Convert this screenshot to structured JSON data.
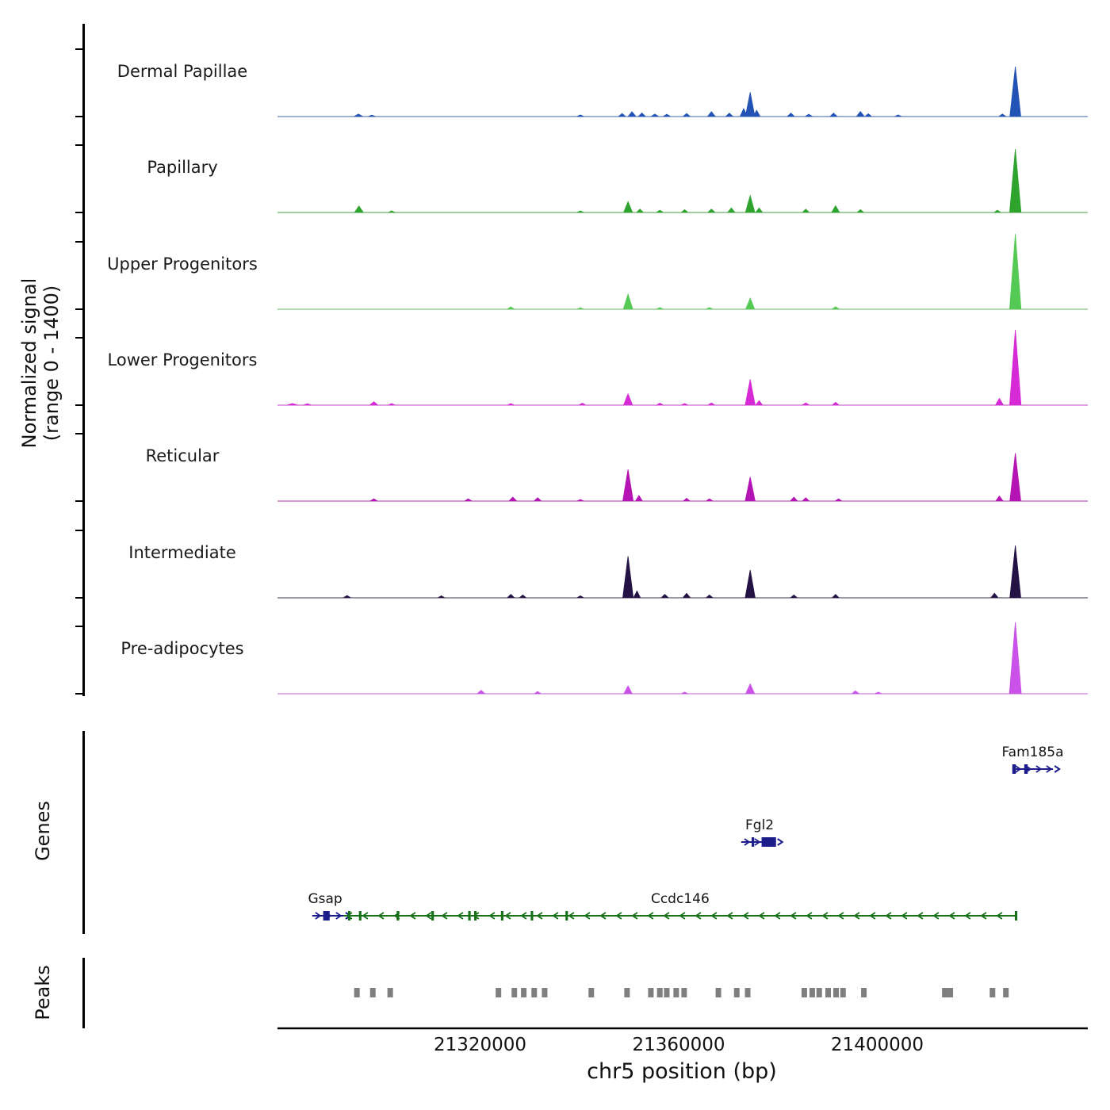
{
  "labels": {
    "ylabel": "Normalized signal\n(range 0 - 1400)",
    "genes_section": "Genes",
    "peaks_section": "Peaks",
    "xlabel": "chr5 position (bp)"
  },
  "chart_data": {
    "type": "area",
    "title": "",
    "xlabel": "chr5 position (bp)",
    "ylabel": "Normalized signal (range 0 - 1400)",
    "y_range_per_track": [
      0,
      1400
    ],
    "axis": {
      "x_min": 21279200,
      "x_max": 21442400,
      "ticks": [
        21320000,
        21360000,
        21400000
      ],
      "tick_labels": [
        "21320000",
        "21360000",
        "21400000"
      ]
    },
    "tracks": [
      {
        "name": "Dermal Papillae",
        "color": "#2353b5",
        "peaks": [
          [
            21295500,
            45,
            1800
          ],
          [
            21298200,
            25,
            1500
          ],
          [
            21340200,
            30,
            1500
          ],
          [
            21348600,
            55,
            1500
          ],
          [
            21350600,
            85,
            1600
          ],
          [
            21352600,
            65,
            1500
          ],
          [
            21355200,
            45,
            1500
          ],
          [
            21357600,
            40,
            1500
          ],
          [
            21361600,
            55,
            1500
          ],
          [
            21366600,
            85,
            1600
          ],
          [
            21370200,
            60,
            1500
          ],
          [
            21373100,
            140,
            1500
          ],
          [
            21374400,
            430,
            1900
          ],
          [
            21375700,
            110,
            1400
          ],
          [
            21382600,
            60,
            1500
          ],
          [
            21386200,
            40,
            1500
          ],
          [
            21391200,
            60,
            1500
          ],
          [
            21396600,
            90,
            1600
          ],
          [
            21398200,
            50,
            1400
          ],
          [
            21404200,
            30,
            1400
          ],
          [
            21425200,
            45,
            1400
          ],
          [
            21427800,
            880,
            2200
          ]
        ]
      },
      {
        "name": "Papillary",
        "color": "#2ea32e",
        "peaks": [
          [
            21295600,
            115,
            1800
          ],
          [
            21302200,
            30,
            1400
          ],
          [
            21340200,
            30,
            1400
          ],
          [
            21349800,
            190,
            1800
          ],
          [
            21352200,
            60,
            1400
          ],
          [
            21356200,
            40,
            1400
          ],
          [
            21361200,
            50,
            1400
          ],
          [
            21366600,
            60,
            1500
          ],
          [
            21370600,
            80,
            1500
          ],
          [
            21374400,
            300,
            1900
          ],
          [
            21376200,
            80,
            1400
          ],
          [
            21385600,
            60,
            1400
          ],
          [
            21391600,
            120,
            1600
          ],
          [
            21396600,
            50,
            1400
          ],
          [
            21424200,
            40,
            1400
          ],
          [
            21427800,
            1120,
            2300
          ]
        ]
      },
      {
        "name": "Upper Progenitors",
        "color": "#54c954",
        "peaks": [
          [
            21326200,
            40,
            1500
          ],
          [
            21340200,
            25,
            1400
          ],
          [
            21349800,
            265,
            1900
          ],
          [
            21356200,
            30,
            1400
          ],
          [
            21366200,
            30,
            1400
          ],
          [
            21374400,
            195,
            1800
          ],
          [
            21391600,
            45,
            1500
          ],
          [
            21427800,
            1330,
            2300
          ]
        ]
      },
      {
        "name": "Lower Progenitors",
        "color": "#d62ad6",
        "peaks": [
          [
            21282200,
            30,
            2200
          ],
          [
            21285200,
            25,
            1600
          ],
          [
            21298600,
            60,
            1700
          ],
          [
            21302200,
            30,
            1400
          ],
          [
            21326200,
            30,
            1400
          ],
          [
            21340600,
            35,
            1400
          ],
          [
            21349800,
            200,
            1800
          ],
          [
            21356200,
            35,
            1400
          ],
          [
            21361200,
            30,
            1400
          ],
          [
            21366600,
            40,
            1400
          ],
          [
            21374400,
            455,
            2000
          ],
          [
            21376200,
            80,
            1400
          ],
          [
            21385600,
            40,
            1400
          ],
          [
            21391600,
            50,
            1400
          ],
          [
            21424600,
            120,
            1600
          ],
          [
            21427800,
            1330,
            2300
          ]
        ]
      },
      {
        "name": "Reticular",
        "color": "#b414b4",
        "peaks": [
          [
            21298600,
            40,
            1500
          ],
          [
            21317600,
            40,
            1500
          ],
          [
            21326600,
            70,
            1600
          ],
          [
            21331600,
            60,
            1500
          ],
          [
            21340200,
            30,
            1400
          ],
          [
            21349800,
            560,
            2100
          ],
          [
            21352000,
            100,
            1400
          ],
          [
            21361600,
            50,
            1400
          ],
          [
            21366200,
            40,
            1400
          ],
          [
            21374400,
            425,
            2000
          ],
          [
            21383200,
            70,
            1500
          ],
          [
            21385600,
            60,
            1400
          ],
          [
            21392200,
            40,
            1400
          ],
          [
            21424600,
            90,
            1500
          ],
          [
            21427800,
            845,
            2200
          ]
        ]
      },
      {
        "name": "Intermediate",
        "color": "#241245",
        "peaks": [
          [
            21293200,
            40,
            1500
          ],
          [
            21312200,
            35,
            1400
          ],
          [
            21326200,
            60,
            1500
          ],
          [
            21328600,
            50,
            1400
          ],
          [
            21340200,
            35,
            1400
          ],
          [
            21349800,
            735,
            2100
          ],
          [
            21351600,
            120,
            1400
          ],
          [
            21357200,
            60,
            1500
          ],
          [
            21361600,
            80,
            1500
          ],
          [
            21366200,
            50,
            1400
          ],
          [
            21374400,
            490,
            2000
          ],
          [
            21383200,
            50,
            1400
          ],
          [
            21391600,
            60,
            1400
          ],
          [
            21423600,
            80,
            1500
          ],
          [
            21427800,
            925,
            2200
          ]
        ]
      },
      {
        "name": "Pre-adipocytes",
        "color": "#cb52e8",
        "peaks": [
          [
            21320200,
            60,
            1600
          ],
          [
            21331600,
            40,
            1400
          ],
          [
            21349800,
            140,
            1700
          ],
          [
            21361200,
            30,
            1400
          ],
          [
            21374400,
            175,
            1800
          ],
          [
            21395600,
            50,
            1500
          ],
          [
            21400200,
            30,
            1400
          ],
          [
            21427800,
            1265,
            2400
          ]
        ]
      }
    ],
    "genes": [
      {
        "name": "Fam185a",
        "color": "#1c1c8a",
        "start": 21427200,
        "end": 21435400,
        "strand": "+",
        "row": 0,
        "label_x": 21431300,
        "exons": [
          [
            21427200,
            21427900
          ],
          [
            21429600,
            21430300
          ]
        ]
      },
      {
        "name": "Fgl2",
        "color": "#1c1c8a",
        "start": 21372600,
        "end": 21379600,
        "strand": "+",
        "row": 1,
        "label_x": 21376300,
        "exons": [
          [
            21374700,
            21375200
          ],
          [
            21376700,
            21379600
          ]
        ]
      },
      {
        "name": "Gsap",
        "color": "#1c1c8a",
        "start": 21286200,
        "end": 21292600,
        "strand": "+",
        "row": 2,
        "label_x": 21288800,
        "exons": [
          [
            21288400,
            21289700
          ]
        ]
      },
      {
        "name": "Ccdc146",
        "color": "#187018",
        "start": 21292600,
        "end": 21428200,
        "strand": "-",
        "row": 2,
        "label_x": 21360300,
        "exons": [
          [
            21293400,
            21293900
          ],
          [
            21295600,
            21296100
          ],
          [
            21303200,
            21303700
          ],
          [
            21310200,
            21310700
          ],
          [
            21317600,
            21318100
          ],
          [
            21318800,
            21319300
          ],
          [
            21324200,
            21324700
          ],
          [
            21330200,
            21330700
          ],
          [
            21337200,
            21337700
          ],
          [
            21427700,
            21428200
          ]
        ]
      }
    ],
    "peak_calls": {
      "color": "#7f7f7f",
      "width_bp": 1100,
      "positions": [
        21295200,
        21298400,
        21301900,
        21323700,
        21326900,
        21328800,
        21330900,
        21333000,
        21342400,
        21349600,
        21354400,
        21356200,
        21357600,
        21359500,
        21361100,
        21368000,
        21371700,
        21373900,
        21385300,
        21386900,
        21388300,
        21390100,
        21391700,
        21393100,
        21397300,
        21413600,
        21414700,
        21423200,
        21425900
      ]
    }
  }
}
